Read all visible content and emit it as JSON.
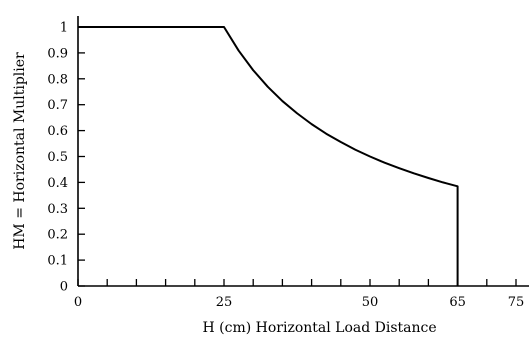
{
  "chart_data": {
    "type": "line",
    "title": "",
    "xlabel": "H (cm) Horizontal Load Distance",
    "ylabel": "HM = Horizontal Multiplier",
    "xlim": [
      0,
      80
    ],
    "ylim": [
      0,
      1.05
    ],
    "x_ticks": [
      0,
      25,
      50,
      65,
      75
    ],
    "x_minor_ticks": [
      5,
      10,
      15,
      20,
      30,
      35,
      40,
      45,
      55,
      60,
      70
    ],
    "y_ticks": [
      0,
      0.1,
      0.2,
      0.3,
      0.4,
      0.5,
      0.6,
      0.7,
      0.8,
      0.9,
      1
    ],
    "y_tick_labels": [
      "0",
      "0.1",
      "0.2",
      "0.3",
      "0.4",
      "0.5",
      "0.6",
      "0.7",
      "0.8",
      "0.9",
      "1"
    ],
    "grid": false,
    "series": [
      {
        "x": [
          0,
          25,
          27.5,
          30,
          32.5,
          35,
          37.5,
          40,
          42.5,
          45,
          47.5,
          50,
          52.5,
          55,
          57.5,
          60,
          62.5,
          63,
          65,
          65
        ],
        "y": [
          1,
          1,
          0.909,
          0.833,
          0.769,
          0.714,
          0.667,
          0.625,
          0.588,
          0.556,
          0.526,
          0.5,
          0.476,
          0.455,
          0.435,
          0.417,
          0.4,
          0.397,
          0.385,
          0
        ]
      }
    ]
  }
}
